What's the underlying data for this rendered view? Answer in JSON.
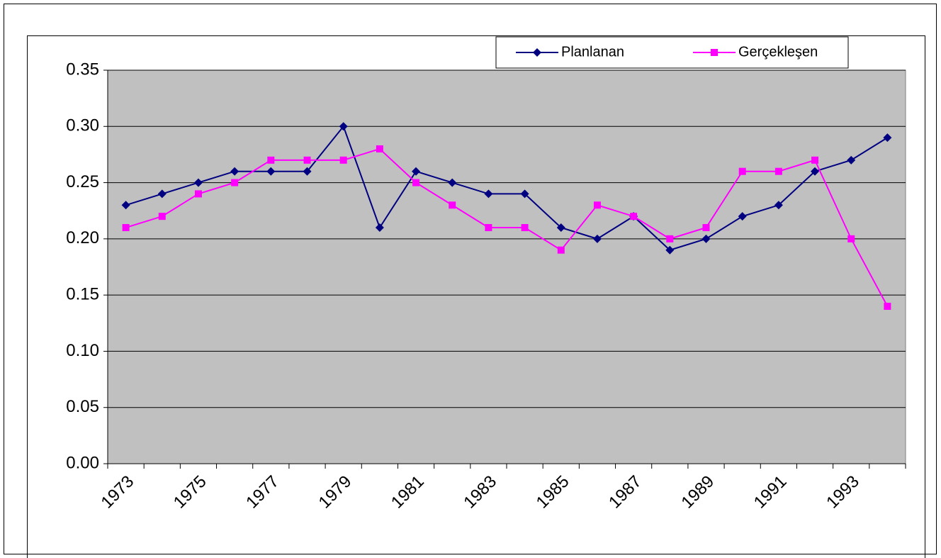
{
  "chart_data": {
    "type": "line",
    "categories": [
      "1973",
      null,
      "1975",
      null,
      "1977",
      null,
      "1979",
      null,
      "1981",
      null,
      "1983",
      null,
      "1985",
      null,
      "1987",
      null,
      "1989",
      null,
      "1991",
      null,
      "1993",
      null
    ],
    "series": [
      {
        "name": "Planlanan",
        "color": "#000080",
        "marker": "diamond",
        "values": [
          0.23,
          0.24,
          0.25,
          0.26,
          0.26,
          0.26,
          0.3,
          0.21,
          0.26,
          0.25,
          0.24,
          0.24,
          0.21,
          0.2,
          0.22,
          0.19,
          0.2,
          0.22,
          0.23,
          0.26,
          0.27,
          0.29
        ]
      },
      {
        "name": "Gerçekleşen",
        "color": "#ff00ff",
        "marker": "square",
        "values": [
          0.21,
          0.22,
          0.24,
          0.25,
          0.27,
          0.27,
          0.27,
          0.28,
          0.25,
          0.23,
          0.21,
          0.21,
          0.19,
          0.23,
          0.22,
          0.2,
          0.21,
          0.26,
          0.26,
          0.27,
          0.2,
          0.14
        ]
      }
    ],
    "ylim": [
      0,
      0.35
    ],
    "yticks": [
      {
        "value": 0,
        "label": "0.00"
      },
      0.05,
      {
        "value": 0.1,
        "label": "0.10"
      },
      0.15,
      {
        "value": 0.2,
        "label": "0.20"
      },
      0.25,
      {
        "value": 0.3,
        "label": "0.30"
      },
      0.35
    ],
    "grid": true,
    "legend": "top-right",
    "plot_background": "#c0c0c0"
  }
}
